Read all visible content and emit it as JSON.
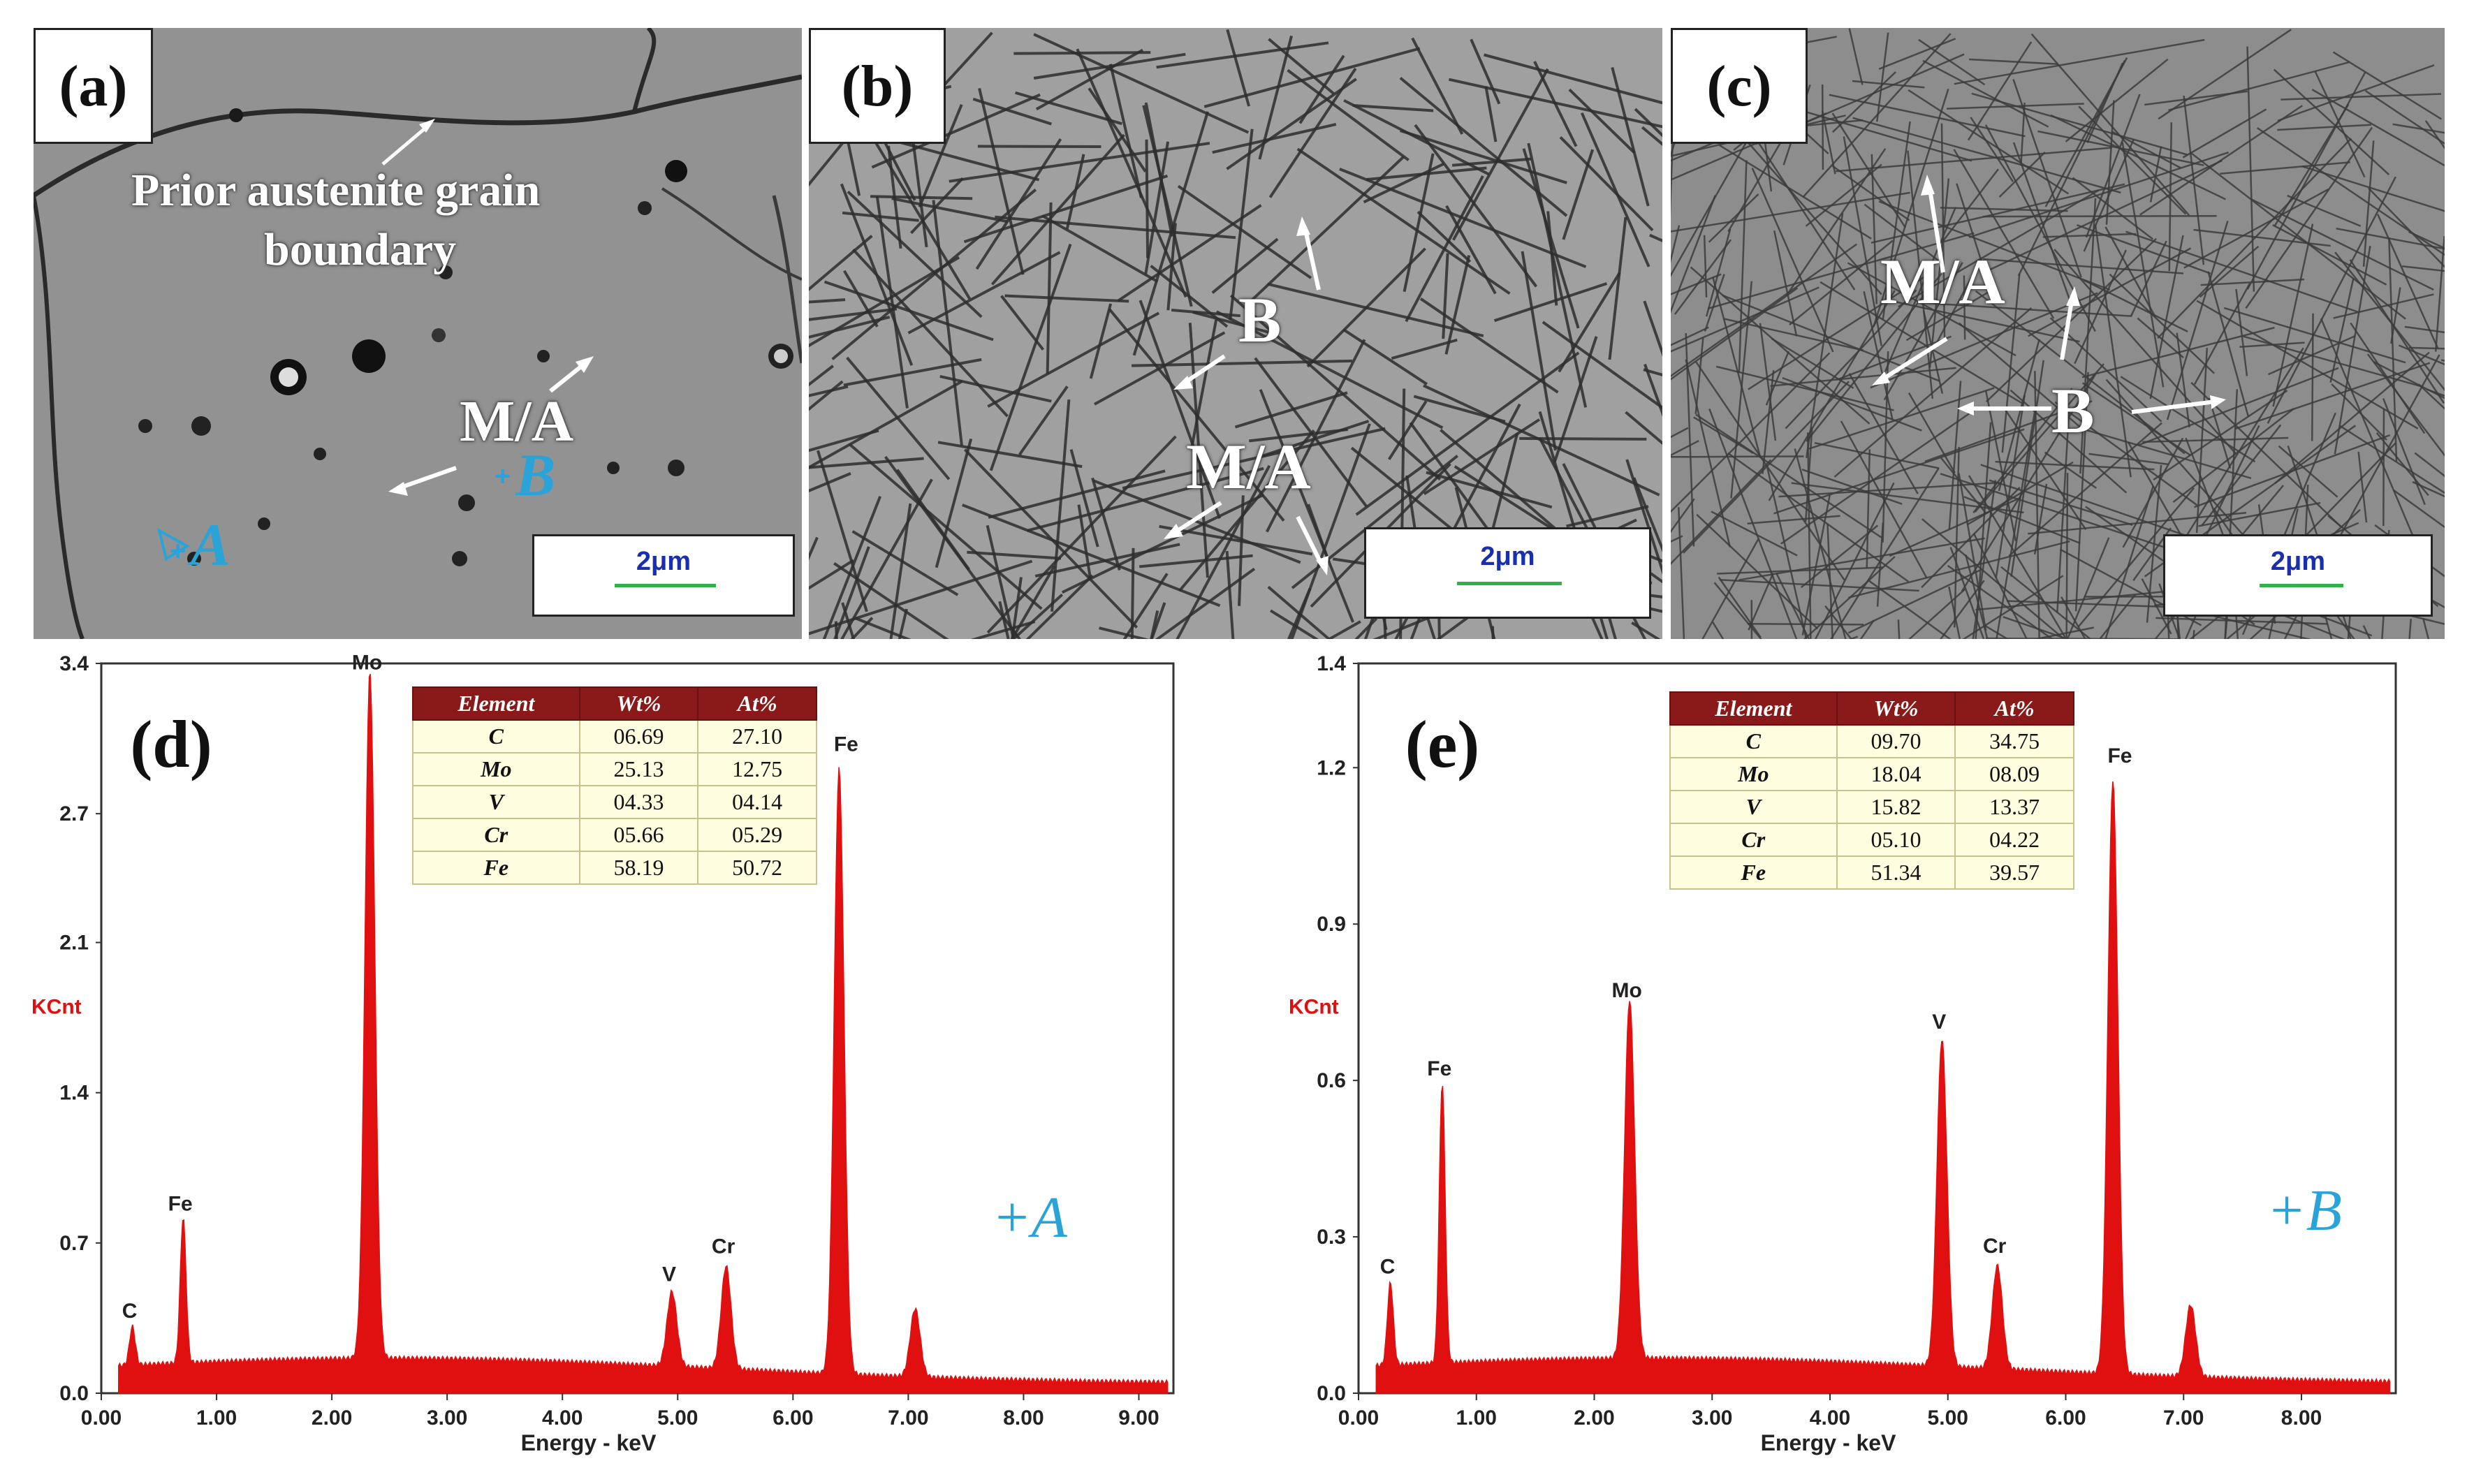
{
  "micrographs": {
    "a": {
      "label": "(a)",
      "annotation": "Prior austenite grain boundary",
      "annotation_line1": "Prior austenite grain",
      "annotation_line2": "boundary",
      "ma_label": "M/A",
      "point_a": "A",
      "point_b": "B",
      "scale": "2μm"
    },
    "b": {
      "label": "(b)",
      "b_label": "B",
      "ma_label": "M/A",
      "scale": "2μm"
    },
    "c": {
      "label": "(c)",
      "ma_label": "M/A",
      "b_label": "B",
      "scale": "2μm"
    }
  },
  "chart_data": [
    {
      "type": "line",
      "panel": "(d)",
      "xlabel": "Energy - keV",
      "ylabel": "KCnt",
      "xlim": [
        0,
        9.3
      ],
      "ylim": [
        0,
        3.4
      ],
      "xticks": [
        "0.00",
        "1.00",
        "2.00",
        "3.00",
        "4.00",
        "5.00",
        "6.00",
        "7.00",
        "8.00",
        "9.00"
      ],
      "yticks": [
        "0.0",
        "0.7",
        "1.4",
        "2.1",
        "2.7",
        "3.4"
      ],
      "ytick_values": [
        0,
        0.7,
        1.4,
        2.1,
        2.7,
        3.4
      ],
      "point_label": "+A",
      "peaks": [
        {
          "label": "C",
          "x": 0.27,
          "y": 0.28
        },
        {
          "label": "Fe",
          "x": 0.71,
          "y": 0.78
        },
        {
          "label": "Mo",
          "x": 2.33,
          "y": 3.3
        },
        {
          "label": "V",
          "x": 4.95,
          "y": 0.45
        },
        {
          "label": "Cr",
          "x": 5.42,
          "y": 0.58
        },
        {
          "label": "Fe",
          "x": 6.4,
          "y": 2.92
        },
        {
          "label": "",
          "x": 7.06,
          "y": 0.42
        }
      ],
      "table": {
        "headers": [
          "Element",
          "Wt%",
          "At%"
        ],
        "rows": [
          [
            "C",
            "06.69",
            "27.10"
          ],
          [
            "Mo",
            "25.13",
            "12.75"
          ],
          [
            "V",
            "04.33",
            "04.14"
          ],
          [
            "Cr",
            "05.66",
            "05.29"
          ],
          [
            "Fe",
            "58.19",
            "50.72"
          ]
        ]
      }
    },
    {
      "type": "line",
      "panel": "(e)",
      "xlabel": "Energy - keV",
      "ylabel": "KCnt",
      "xlim": [
        0,
        8.8
      ],
      "ylim": [
        0,
        1.4
      ],
      "xticks": [
        "0.00",
        "1.00",
        "2.00",
        "3.00",
        "4.00",
        "5.00",
        "6.00",
        "7.00",
        "8.00"
      ],
      "yticks": [
        "0.0",
        "0.3",
        "0.6",
        "0.9",
        "1.2",
        "1.4"
      ],
      "ytick_values": [
        0,
        0.3,
        0.6,
        0.9,
        1.2,
        1.4
      ],
      "point_label": "+B",
      "peaks": [
        {
          "label": "C",
          "x": 0.27,
          "y": 0.2
        },
        {
          "label": "Fe",
          "x": 0.71,
          "y": 0.58
        },
        {
          "label": "Mo",
          "x": 2.3,
          "y": 0.73
        },
        {
          "label": "V",
          "x": 4.95,
          "y": 0.67
        },
        {
          "label": "Cr",
          "x": 5.42,
          "y": 0.24
        },
        {
          "label": "Fe",
          "x": 6.4,
          "y": 1.18
        },
        {
          "label": "",
          "x": 7.06,
          "y": 0.18
        }
      ],
      "table": {
        "headers": [
          "Element",
          "Wt%",
          "At%"
        ],
        "rows": [
          [
            "C",
            "09.70",
            "34.75"
          ],
          [
            "Mo",
            "18.04",
            "08.09"
          ],
          [
            "V",
            "15.82",
            "13.37"
          ],
          [
            "Cr",
            "05.10",
            "04.22"
          ],
          [
            "Fe",
            "51.34",
            "39.57"
          ]
        ]
      }
    }
  ],
  "colors": {
    "spectrum": "#e01010",
    "table_header": "#8a1a1a",
    "table_body": "#fffde0",
    "point_label": "#2aa3d8",
    "scale_text": "#1a2fb0",
    "scale_bar": "#2db34a",
    "ylabel": "#e01010"
  }
}
